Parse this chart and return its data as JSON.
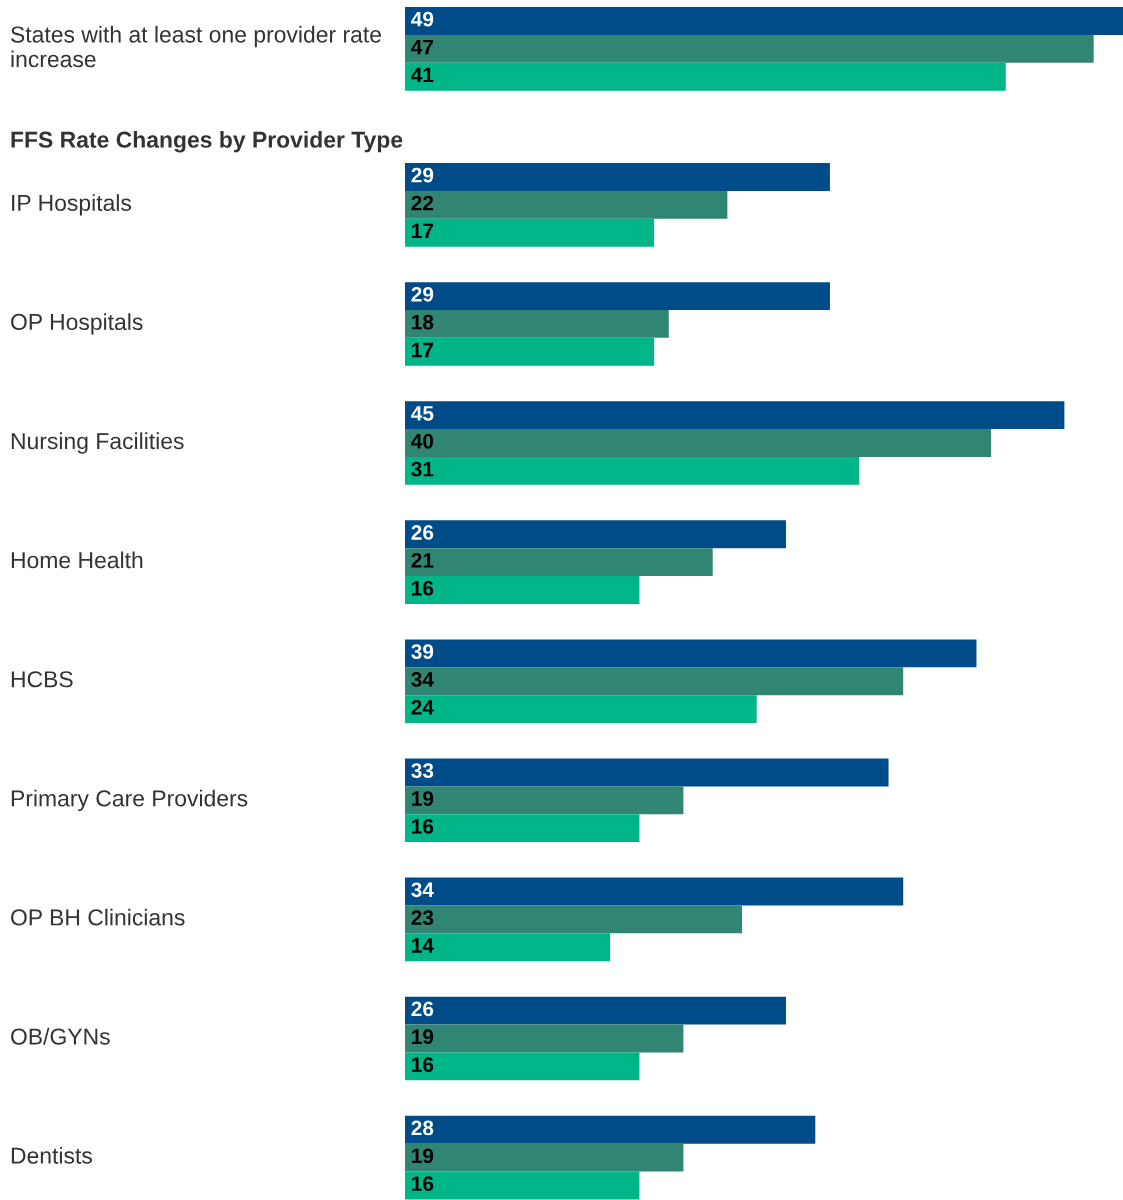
{
  "chart_data": {
    "type": "bar",
    "orientation": "horizontal",
    "data_labels": true,
    "categories": [
      "States with at least one provider rate\nincrease",
      "IP Hospitals",
      "OP Hospitals",
      "Nursing Facilities",
      "Home Health",
      "HCBS",
      "Primary Care Providers",
      "OP BH Clinicians",
      "OB/GYNs",
      "Dentists"
    ],
    "series": [
      {
        "color": "#004c88",
        "values": [
          49,
          29,
          29,
          45,
          26,
          39,
          33,
          34,
          26,
          28
        ]
      },
      {
        "color": "#318673",
        "values": [
          47,
          22,
          18,
          40,
          21,
          34,
          19,
          23,
          19,
          19
        ]
      },
      {
        "color": "#00b588",
        "values": [
          41,
          17,
          17,
          31,
          16,
          24,
          16,
          14,
          16,
          16
        ]
      }
    ],
    "annotations": [
      "FFS Rate Changes by Provider Type"
    ]
  }
}
